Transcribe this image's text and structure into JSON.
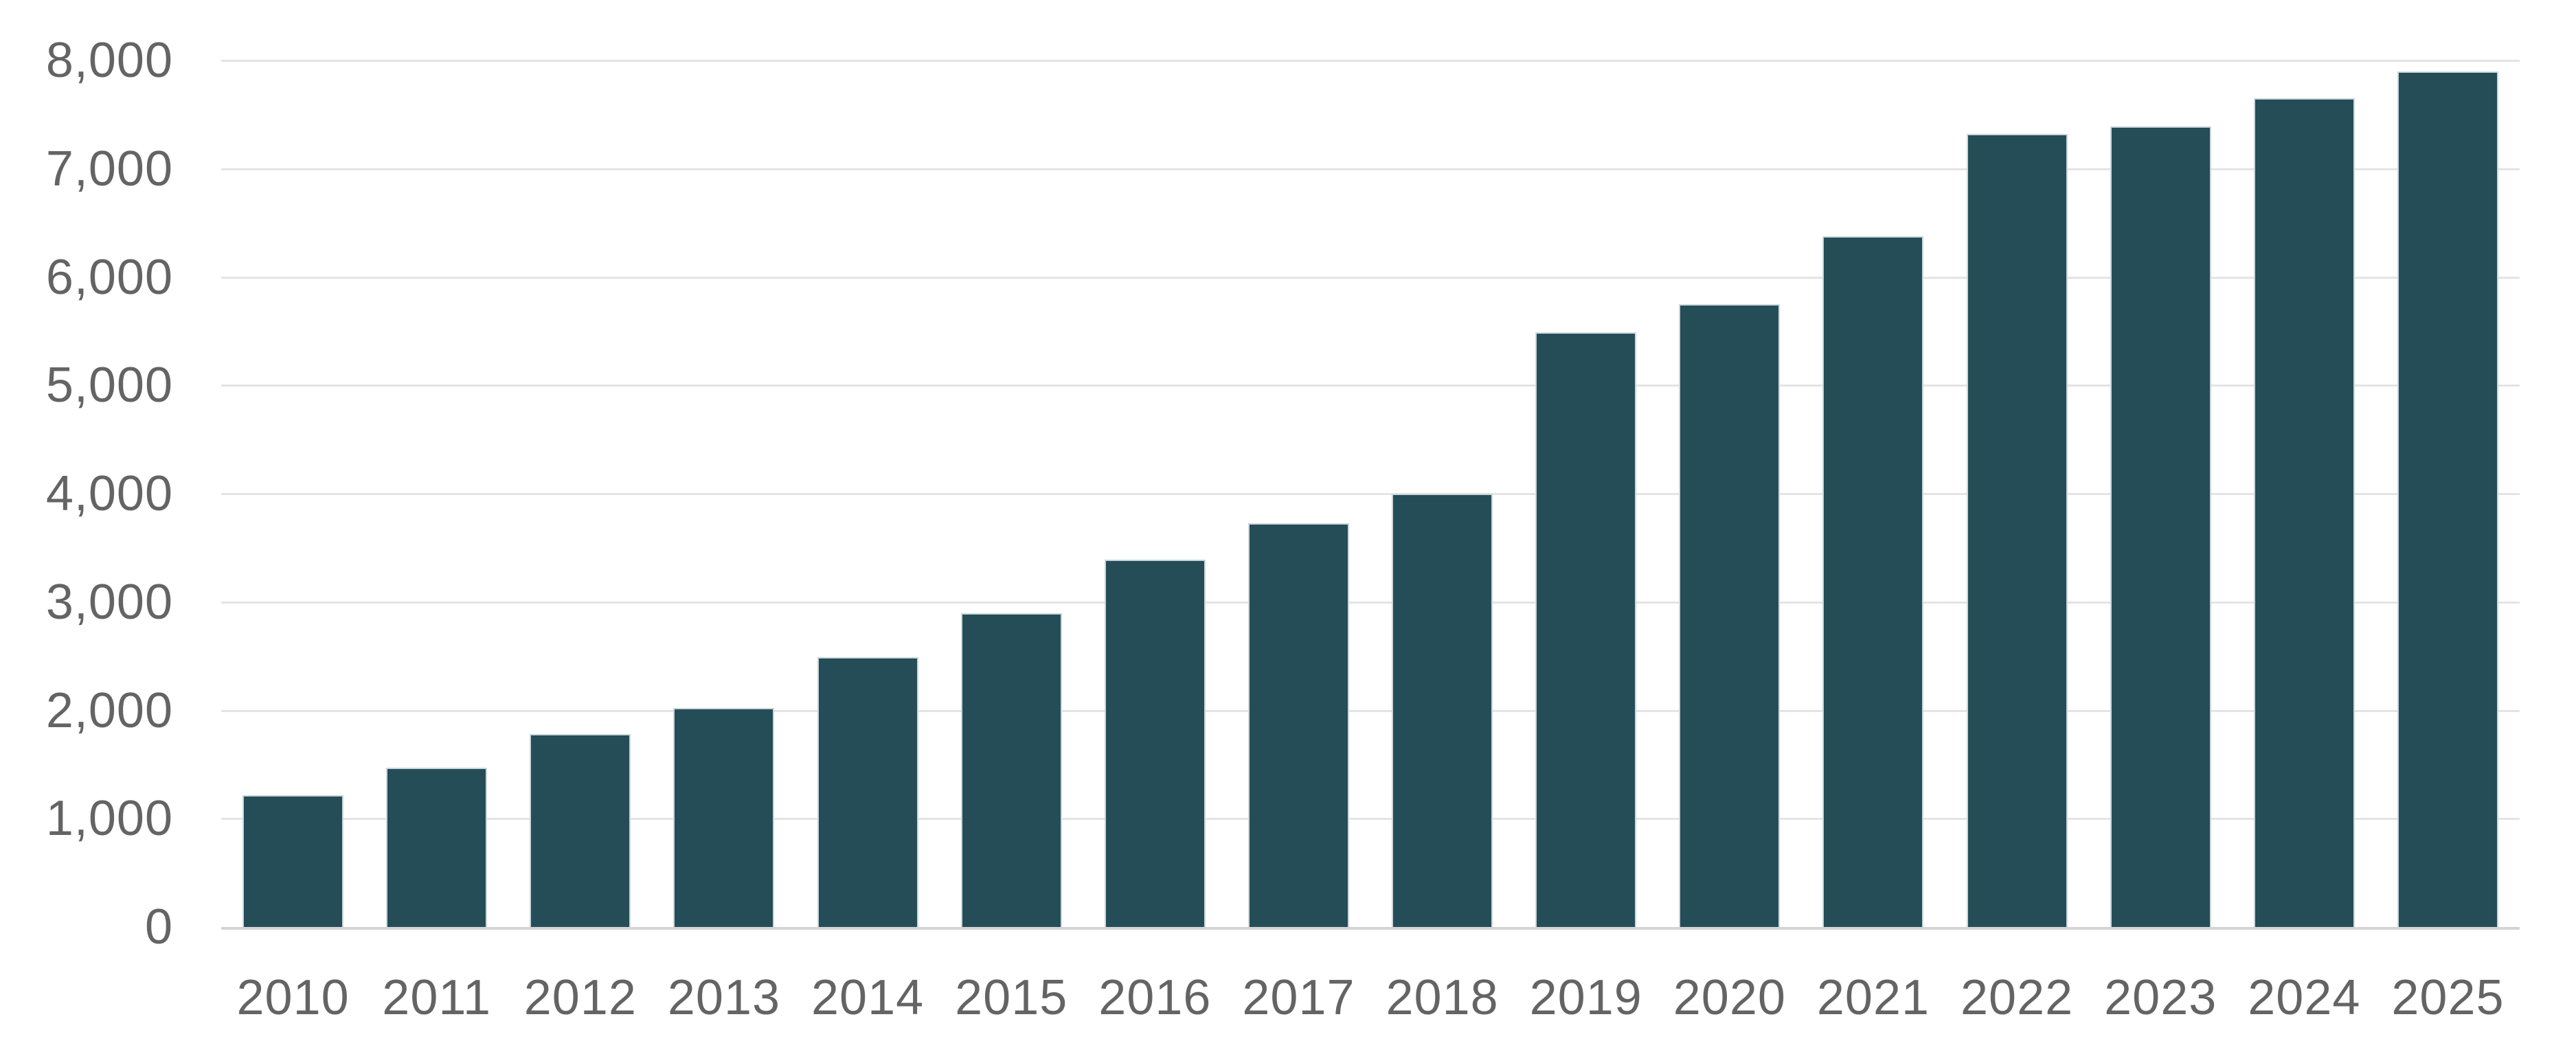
{
  "chart_data": {
    "type": "bar",
    "categories": [
      "2010",
      "2011",
      "2012",
      "2013",
      "2014",
      "2015",
      "2016",
      "2017",
      "2018",
      "2019",
      "2020",
      "2021",
      "2022",
      "2023",
      "2024",
      "2025"
    ],
    "values": [
      1220,
      1470,
      1780,
      2020,
      2490,
      2900,
      3390,
      3730,
      4000,
      5490,
      5750,
      6380,
      7320,
      7390,
      7650,
      7900
    ],
    "xlabel": "",
    "ylabel": "",
    "ylim": [
      0,
      8000
    ],
    "ytick_values": [
      0,
      1000,
      2000,
      3000,
      4000,
      5000,
      6000,
      7000,
      8000
    ],
    "ytick_labels": [
      "0",
      "1,000",
      "2,000",
      "3,000",
      "4,000",
      "5,000",
      "6,000",
      "7,000",
      "8,000"
    ],
    "grid": "horizontal-only",
    "legend": "none",
    "colors": {
      "bar_fill": "#254d58",
      "bar_edge": "#cbd7db",
      "gridline": "#e4e4e4",
      "baseline": "#d4d4d4",
      "tick_label": "#646464",
      "background": "#ffffff"
    }
  }
}
